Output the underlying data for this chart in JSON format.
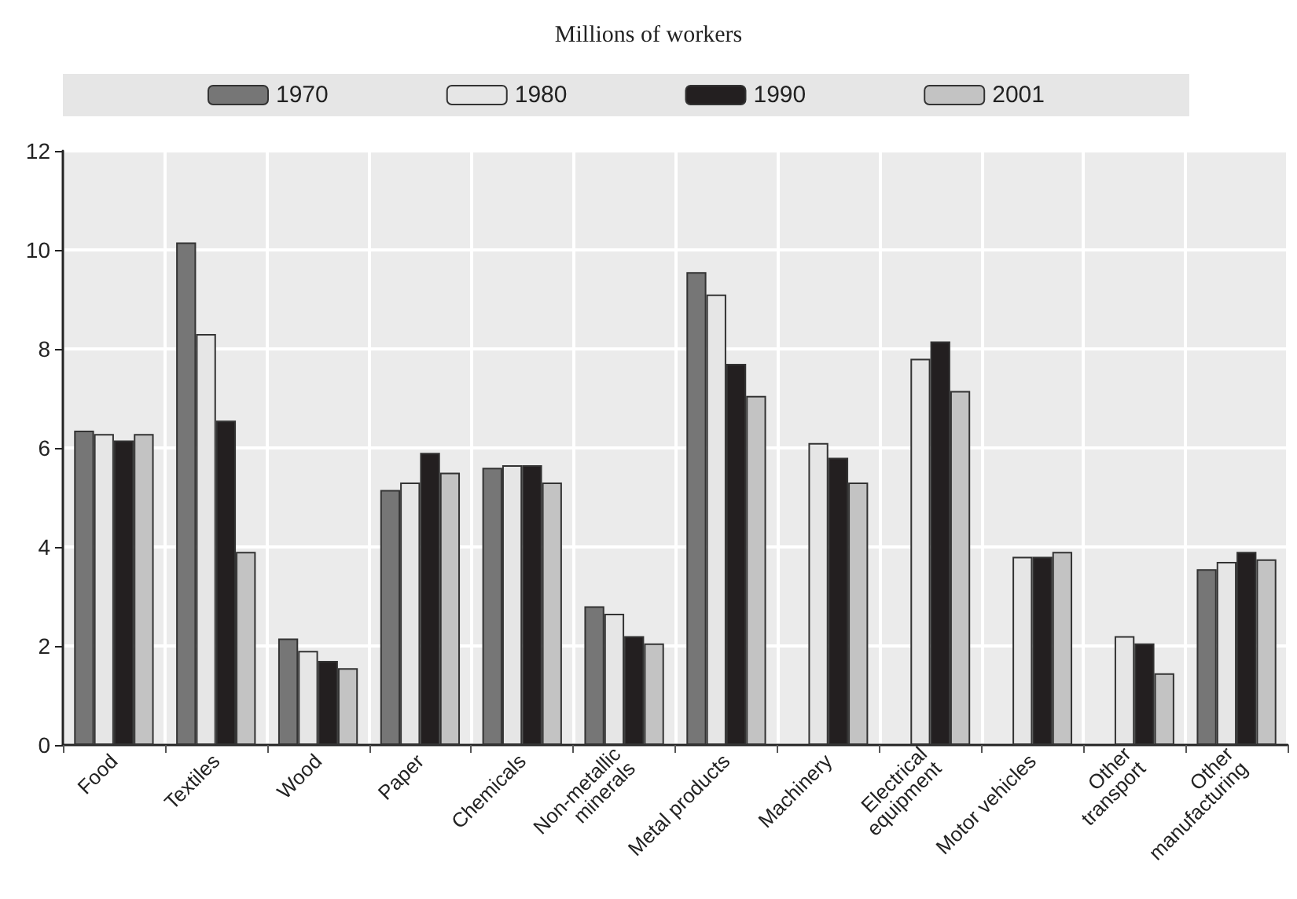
{
  "chart_data": {
    "type": "bar",
    "title": "Millions of workers",
    "categories": [
      "Food",
      "Textiles",
      "Wood",
      "Paper",
      "Chemicals",
      "Non-metallic\nminerals",
      "Metal products",
      "Machinery",
      "Electrical\nequipment",
      "Motor vehicles",
      "Other\ntransport",
      "Other\nmanufacturing"
    ],
    "series": [
      {
        "name": "1970",
        "color": "#767676",
        "values": [
          6.35,
          10.15,
          2.15,
          5.15,
          5.6,
          2.8,
          9.55,
          null,
          null,
          null,
          null,
          3.55
        ]
      },
      {
        "name": "1980",
        "color": "#e6e6e6",
        "values": [
          6.28,
          8.3,
          1.9,
          5.3,
          5.65,
          2.65,
          9.1,
          6.1,
          7.8,
          3.8,
          2.2,
          3.7
        ]
      },
      {
        "name": "1990",
        "color": "#231f20",
        "values": [
          6.15,
          6.55,
          1.7,
          5.9,
          5.65,
          2.2,
          7.7,
          5.8,
          8.15,
          3.8,
          2.05,
          3.9
        ]
      },
      {
        "name": "2001",
        "color": "#c3c3c3",
        "values": [
          6.28,
          3.9,
          1.55,
          5.5,
          5.3,
          2.05,
          7.05,
          5.3,
          7.15,
          3.9,
          1.45,
          3.75
        ]
      }
    ],
    "ylim": [
      0,
      12
    ],
    "yticks": [
      0,
      2,
      4,
      6,
      8,
      10,
      12
    ],
    "grid": true,
    "legend": "top"
  }
}
